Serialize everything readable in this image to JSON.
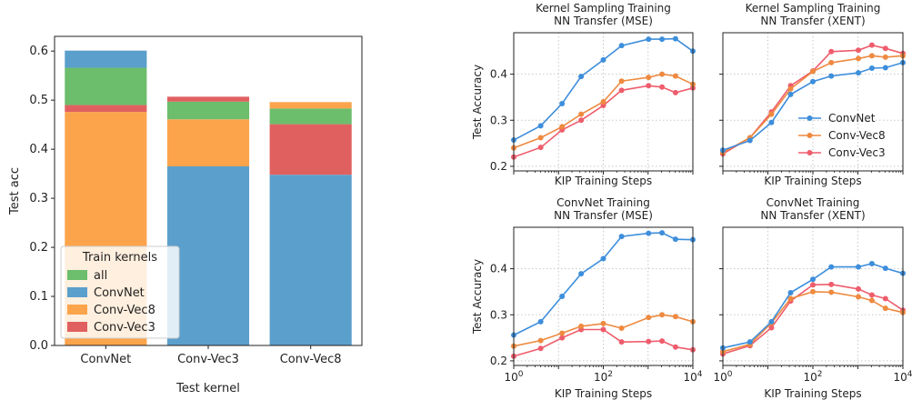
{
  "chart_data": [
    {
      "type": "bar",
      "stacked": true,
      "xlabel": "Test kernel",
      "ylabel": "Test acc",
      "ylim": [
        0,
        0.63
      ],
      "yticks": [
        0.0,
        0.1,
        0.2,
        0.3,
        0.4,
        0.5,
        0.6
      ],
      "categories": [
        "ConvNet",
        "Conv-Vec3",
        "Conv-Vec8"
      ],
      "legend": {
        "title": "Train kernels",
        "position": "lower-left",
        "entries": [
          "all",
          "ConvNet",
          "Conv-Vec8",
          "Conv-Vec3"
        ]
      },
      "stacks": [
        {
          "category": "ConvNet",
          "segments": [
            {
              "series": "Conv-Vec8",
              "from": 0.0,
              "to": 0.476
            },
            {
              "series": "Conv-Vec3",
              "from": 0.476,
              "to": 0.49
            },
            {
              "series": "all",
              "from": 0.49,
              "to": 0.566
            },
            {
              "series": "ConvNet",
              "from": 0.566,
              "to": 0.601
            }
          ]
        },
        {
          "category": "Conv-Vec3",
          "segments": [
            {
              "series": "ConvNet",
              "from": 0.0,
              "to": 0.365
            },
            {
              "series": "Conv-Vec8",
              "from": 0.365,
              "to": 0.461
            },
            {
              "series": "all",
              "from": 0.461,
              "to": 0.497
            },
            {
              "series": "Conv-Vec3",
              "from": 0.497,
              "to": 0.507
            }
          ]
        },
        {
          "category": "Conv-Vec8",
          "segments": [
            {
              "series": "ConvNet",
              "from": 0.0,
              "to": 0.348
            },
            {
              "series": "Conv-Vec3",
              "from": 0.348,
              "to": 0.451
            },
            {
              "series": "all",
              "from": 0.451,
              "to": 0.483
            },
            {
              "series": "Conv-Vec8",
              "from": 0.483,
              "to": 0.496
            }
          ]
        }
      ]
    },
    {
      "type": "line",
      "title": "Kernel Sampling Training\nNN Transfer (MSE)",
      "xlabel": "KIP Training Steps",
      "ylabel": "Test Accuracy",
      "xscale": "log",
      "xlim": [
        1,
        10000
      ],
      "ylim": [
        0.19,
        0.49
      ],
      "yticks": [
        0.2,
        0.3,
        0.4
      ],
      "grid": true,
      "x": [
        1,
        4,
        12,
        32,
        100,
        256,
        1024,
        2048,
        4096,
        10000
      ],
      "series": [
        {
          "name": "ConvNet",
          "values": [
            0.257,
            0.288,
            0.336,
            0.395,
            0.431,
            0.462,
            0.476,
            0.476,
            0.477,
            0.45
          ]
        },
        {
          "name": "Conv-Vec8",
          "values": [
            0.24,
            0.262,
            0.286,
            0.313,
            0.34,
            0.385,
            0.393,
            0.4,
            0.396,
            0.378
          ]
        },
        {
          "name": "Conv-Vec3",
          "values": [
            0.22,
            0.241,
            0.279,
            0.3,
            0.332,
            0.365,
            0.375,
            0.372,
            0.36,
            0.37
          ]
        }
      ]
    },
    {
      "type": "line",
      "title": "Kernel Sampling Training\nNN Transfer (XENT)",
      "xlabel": "KIP Training Steps",
      "xscale": "log",
      "xlim": [
        1,
        10000
      ],
      "ylim": [
        0.19,
        0.49
      ],
      "yticks": [
        0.2,
        0.3,
        0.4
      ],
      "grid": true,
      "legend": {
        "position": "lower-right",
        "entries": [
          "ConvNet",
          "Conv-Vec8",
          "Conv-Vec3"
        ]
      },
      "x": [
        1,
        4,
        12,
        32,
        100,
        256,
        1024,
        2048,
        4096,
        10000
      ],
      "series": [
        {
          "name": "ConvNet",
          "values": [
            0.235,
            0.256,
            0.295,
            0.356,
            0.384,
            0.396,
            0.403,
            0.413,
            0.414,
            0.425
          ]
        },
        {
          "name": "Conv-Vec8",
          "values": [
            0.23,
            0.262,
            0.313,
            0.368,
            0.406,
            0.425,
            0.434,
            0.44,
            0.437,
            0.44
          ]
        },
        {
          "name": "Conv-Vec3",
          "values": [
            0.227,
            0.262,
            0.318,
            0.375,
            0.407,
            0.449,
            0.452,
            0.463,
            0.456,
            0.445
          ]
        }
      ]
    },
    {
      "type": "line",
      "title": "ConvNet Training\nNN Transfer (MSE)",
      "xlabel": "KIP Training Steps",
      "ylabel": "Test Accuracy",
      "xscale": "log",
      "xlim": [
        1,
        10000
      ],
      "ylim": [
        0.19,
        0.49
      ],
      "yticks": [
        0.2,
        0.3,
        0.4
      ],
      "grid": true,
      "x": [
        1,
        4,
        12,
        32,
        100,
        256,
        1024,
        2048,
        4096,
        10000
      ],
      "series": [
        {
          "name": "ConvNet",
          "values": [
            0.256,
            0.285,
            0.34,
            0.389,
            0.422,
            0.47,
            0.477,
            0.478,
            0.464,
            0.463
          ]
        },
        {
          "name": "Conv-Vec8",
          "values": [
            0.232,
            0.244,
            0.26,
            0.275,
            0.281,
            0.271,
            0.294,
            0.3,
            0.296,
            0.285
          ]
        },
        {
          "name": "Conv-Vec3",
          "values": [
            0.21,
            0.227,
            0.25,
            0.268,
            0.268,
            0.241,
            0.242,
            0.243,
            0.23,
            0.224
          ]
        }
      ]
    },
    {
      "type": "line",
      "title": "ConvNet Training\nNN Transfer (XENT)",
      "xlabel": "KIP Training Steps",
      "xscale": "log",
      "xlim": [
        1,
        10000
      ],
      "ylim": [
        0.19,
        0.49
      ],
      "yticks": [
        0.2,
        0.3,
        0.4
      ],
      "grid": true,
      "x": [
        1,
        4,
        12,
        32,
        100,
        256,
        1024,
        2048,
        4096,
        10000
      ],
      "series": [
        {
          "name": "ConvNet",
          "values": [
            0.228,
            0.241,
            0.285,
            0.348,
            0.377,
            0.404,
            0.404,
            0.411,
            0.401,
            0.39
          ]
        },
        {
          "name": "Conv-Vec8",
          "values": [
            0.22,
            0.236,
            0.282,
            0.335,
            0.35,
            0.349,
            0.339,
            0.331,
            0.314,
            0.305
          ]
        },
        {
          "name": "Conv-Vec3",
          "values": [
            0.215,
            0.233,
            0.272,
            0.33,
            0.365,
            0.366,
            0.356,
            0.343,
            0.335,
            0.31
          ]
        }
      ]
    }
  ],
  "colors": {
    "all": "#6cbd6c",
    "ConvNet": "#5b9fcc",
    "Conv-Vec8": "#fca44c",
    "Conv-Vec3": "#e06060",
    "line_ConvNet": "#3d8edb",
    "line_Conv-Vec8": "#ee8a40",
    "line_Conv-Vec3": "#ee5d6c"
  }
}
